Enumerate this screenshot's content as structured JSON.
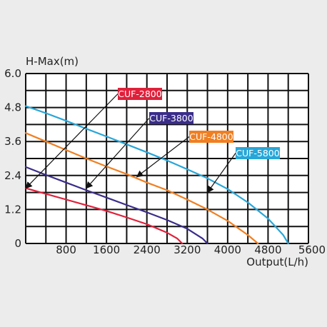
{
  "chart_data": {
    "type": "line",
    "ylabel": "H-Max(m)",
    "xlabel": "Output(L/h)",
    "xlim": [
      0,
      5600
    ],
    "ylim": [
      0,
      6.0
    ],
    "grid": true,
    "x_ticks": [
      0,
      400,
      800,
      1200,
      1600,
      2000,
      2400,
      2800,
      3200,
      3600,
      4000,
      4400,
      4800,
      5200,
      5600
    ],
    "y_ticks": [
      0,
      0.6,
      1.2,
      1.8,
      2.4,
      3.0,
      3.6,
      4.2,
      4.8,
      5.4,
      6.0
    ],
    "x_tick_labels": [
      "800",
      "1600",
      "2400",
      "3200",
      "4000",
      "4800",
      "5600"
    ],
    "x_tick_label_values": [
      800,
      1600,
      2400,
      3200,
      4000,
      4800,
      5600
    ],
    "y_tick_labels": [
      "6.0",
      "4.8",
      "3.6",
      "2.4",
      "1.2",
      "0"
    ],
    "y_tick_label_values": [
      6.0,
      4.8,
      3.6,
      2.4,
      1.2,
      0
    ],
    "series": [
      {
        "name": "CUF-2800",
        "color": "#e0203a",
        "label_color": "#e0203a",
        "x": [
          0,
          400,
          800,
          1200,
          1600,
          2000,
          2400,
          2800,
          3000,
          3100
        ],
        "y": [
          1.95,
          1.75,
          1.55,
          1.35,
          1.15,
          0.92,
          0.68,
          0.38,
          0.18,
          0
        ]
      },
      {
        "name": "CUF-3800",
        "color": "#3a2d8a",
        "label_color": "#3a2d8a",
        "x": [
          0,
          400,
          800,
          1200,
          1600,
          2000,
          2400,
          2800,
          3200,
          3500,
          3600
        ],
        "y": [
          2.7,
          2.42,
          2.15,
          1.88,
          1.62,
          1.36,
          1.1,
          0.83,
          0.52,
          0.18,
          0
        ]
      },
      {
        "name": "CUF-4800",
        "color": "#f07f22",
        "label_color": "#f07f22",
        "x": [
          0,
          400,
          800,
          1200,
          1600,
          2000,
          2400,
          2800,
          3200,
          3600,
          4000,
          4400,
          4600
        ],
        "y": [
          3.9,
          3.6,
          3.3,
          3.0,
          2.72,
          2.45,
          2.15,
          1.88,
          1.55,
          1.2,
          0.8,
          0.3,
          0
        ]
      },
      {
        "name": "CUF-5800",
        "color": "#28a6d8",
        "label_color": "#28a6d8",
        "x": [
          0,
          400,
          800,
          1200,
          1600,
          2000,
          2400,
          2800,
          3200,
          3600,
          4000,
          4400,
          4800,
          5100,
          5200
        ],
        "y": [
          4.85,
          4.6,
          4.33,
          4.05,
          3.78,
          3.5,
          3.22,
          2.93,
          2.62,
          2.3,
          1.92,
          1.45,
          0.88,
          0.3,
          0
        ]
      }
    ],
    "annotations": [
      {
        "series": "CUF-2800",
        "text": "CUF-2800",
        "point_to": [
          0,
          1.95
        ]
      },
      {
        "series": "CUF-3800",
        "text": "CUF-3800",
        "point_to": [
          1200,
          1.95
        ]
      },
      {
        "series": "CUF-4800",
        "text": "CUF-4800",
        "point_to": [
          2200,
          2.35
        ]
      },
      {
        "series": "CUF-5800",
        "text": "CUF-5800",
        "point_to": [
          3600,
          1.8
        ]
      }
    ]
  }
}
